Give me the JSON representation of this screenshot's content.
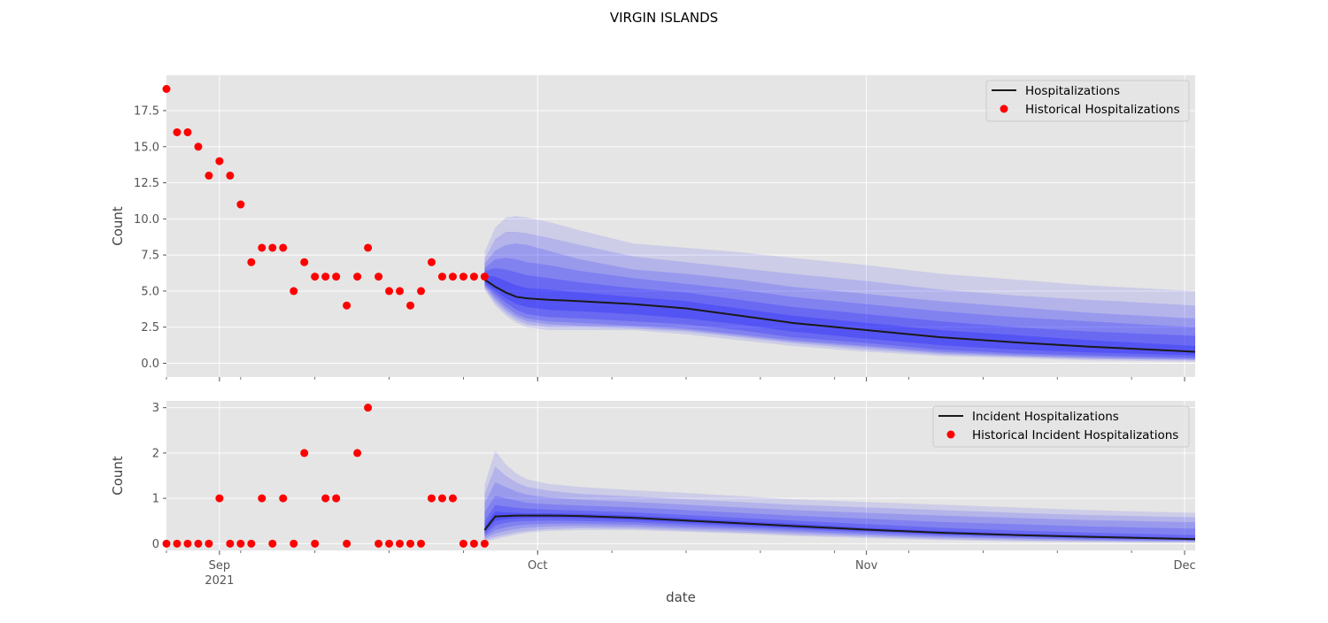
{
  "figure_title": "VIRGIN ISLANDS",
  "colors": {
    "panel_bg": "#e5e5e5",
    "grid": "#ffffff",
    "historical_points": "#ff0000",
    "median_line": "#1a1a1a",
    "fan_band": "#0000ff",
    "tick_text": "#555555"
  },
  "chart_data": [
    {
      "type": "line",
      "title": "",
      "xlabel": "",
      "ylabel": "Count",
      "grid": true,
      "legend_position": "top-right",
      "xlim": [
        "2021-08-27",
        "2021-12-02"
      ],
      "ylim": [
        -0.95,
        19.95
      ],
      "y_ticks": [
        0.0,
        2.5,
        5.0,
        7.5,
        10.0,
        12.5,
        15.0,
        17.5
      ],
      "y_tick_labels": [
        "0.0",
        "2.5",
        "5.0",
        "7.5",
        "10.0",
        "12.5",
        "15.0",
        "17.5"
      ],
      "series": [
        {
          "name": "Historical Hospitalizations",
          "kind": "scatter",
          "x": [
            "2021-08-27",
            "2021-08-28",
            "2021-08-29",
            "2021-08-30",
            "2021-08-31",
            "2021-09-01",
            "2021-09-02",
            "2021-09-03",
            "2021-09-04",
            "2021-09-05",
            "2021-09-06",
            "2021-09-07",
            "2021-09-08",
            "2021-09-09",
            "2021-09-10",
            "2021-09-11",
            "2021-09-12",
            "2021-09-13",
            "2021-09-14",
            "2021-09-15",
            "2021-09-16",
            "2021-09-17",
            "2021-09-18",
            "2021-09-19",
            "2021-09-20",
            "2021-09-21",
            "2021-09-22",
            "2021-09-23",
            "2021-09-24",
            "2021-09-25",
            "2021-09-26"
          ],
          "y": [
            19,
            16,
            16,
            15,
            13,
            14,
            13,
            11,
            7,
            8,
            8,
            8,
            5,
            7,
            6,
            6,
            6,
            4,
            6,
            8,
            6,
            5,
            5,
            4,
            5,
            7,
            6,
            6,
            6,
            6,
            6
          ]
        },
        {
          "name": "Hospitalizations",
          "kind": "line",
          "x": [
            "2021-09-26",
            "2021-09-27",
            "2021-09-28",
            "2021-09-29",
            "2021-09-30",
            "2021-10-02",
            "2021-10-05",
            "2021-10-10",
            "2021-10-15",
            "2021-10-20",
            "2021-10-25",
            "2021-11-01",
            "2021-11-08",
            "2021-11-15",
            "2021-11-22",
            "2021-12-02"
          ],
          "y": [
            5.8,
            5.3,
            4.9,
            4.6,
            4.5,
            4.4,
            4.3,
            4.1,
            3.8,
            3.3,
            2.8,
            2.3,
            1.8,
            1.45,
            1.15,
            0.8
          ]
        }
      ],
      "fan_bands": {
        "x": [
          "2021-09-26",
          "2021-09-27",
          "2021-09-28",
          "2021-09-29",
          "2021-09-30",
          "2021-10-02",
          "2021-10-05",
          "2021-10-10",
          "2021-10-15",
          "2021-10-20",
          "2021-10-25",
          "2021-11-01",
          "2021-11-08",
          "2021-11-15",
          "2021-11-22",
          "2021-12-02"
        ],
        "bands": [
          {
            "lower": [
              5.1,
              4.0,
              3.3,
              2.8,
              2.5,
              2.3,
              2.3,
              2.3,
              2.0,
              1.6,
              1.2,
              0.8,
              0.5,
              0.35,
              0.2,
              0.1
            ],
            "upper": [
              7.7,
              9.4,
              10.1,
              10.2,
              10.1,
              9.8,
              9.2,
              8.3,
              8.0,
              7.7,
              7.3,
              6.8,
              6.2,
              5.8,
              5.4,
              5.0
            ]
          },
          {
            "lower": [
              5.2,
              4.2,
              3.5,
              3.0,
              2.7,
              2.5,
              2.5,
              2.4,
              2.2,
              1.8,
              1.4,
              0.95,
              0.6,
              0.45,
              0.3,
              0.2
            ],
            "upper": [
              7.2,
              8.6,
              9.1,
              9.1,
              9.0,
              8.7,
              8.2,
              7.4,
              7.0,
              6.6,
              6.2,
              5.7,
              5.1,
              4.7,
              4.4,
              4.0
            ]
          },
          {
            "lower": [
              5.3,
              4.4,
              3.7,
              3.2,
              2.9,
              2.7,
              2.6,
              2.5,
              2.3,
              1.9,
              1.5,
              1.1,
              0.7,
              0.5,
              0.35,
              0.25
            ],
            "upper": [
              6.9,
              7.8,
              8.2,
              8.3,
              8.2,
              7.8,
              7.2,
              6.5,
              6.2,
              5.8,
              5.3,
              4.8,
              4.3,
              3.9,
              3.5,
              3.1
            ]
          },
          {
            "lower": [
              5.4,
              4.6,
              3.9,
              3.4,
              3.1,
              2.9,
              2.8,
              2.6,
              2.4,
              2.0,
              1.6,
              1.2,
              0.8,
              0.6,
              0.45,
              0.3
            ],
            "upper": [
              6.6,
              7.2,
              7.3,
              7.2,
              7.0,
              6.8,
              6.4,
              5.9,
              5.5,
              5.1,
              4.6,
              4.1,
              3.6,
              3.2,
              2.9,
              2.5
            ]
          },
          {
            "lower": [
              5.5,
              4.8,
              4.2,
              3.7,
              3.4,
              3.2,
              3.1,
              2.9,
              2.7,
              2.3,
              1.8,
              1.4,
              0.95,
              0.7,
              0.55,
              0.4
            ],
            "upper": [
              6.4,
              6.6,
              6.5,
              6.3,
              6.1,
              5.9,
              5.6,
              5.2,
              4.9,
              4.4,
              3.9,
              3.4,
              2.9,
              2.5,
              2.2,
              1.9
            ]
          },
          {
            "lower": [
              5.6,
              5.0,
              4.5,
              4.1,
              3.9,
              3.7,
              3.6,
              3.4,
              3.1,
              2.7,
              2.2,
              1.7,
              1.25,
              0.95,
              0.75,
              0.55
            ],
            "upper": [
              6.1,
              6.0,
              5.7,
              5.4,
              5.2,
              5.1,
              4.9,
              4.6,
              4.3,
              3.8,
              3.3,
              2.8,
              2.3,
              1.95,
              1.6,
              1.2
            ]
          }
        ]
      }
    },
    {
      "type": "line",
      "title": "",
      "xlabel": "date",
      "ylabel": "Count",
      "grid": true,
      "legend_position": "top-right",
      "xlim": [
        "2021-08-27",
        "2021-12-02"
      ],
      "ylim": [
        -0.15,
        3.15
      ],
      "y_ticks": [
        0,
        1,
        2,
        3
      ],
      "y_tick_labels": [
        "0",
        "1",
        "2",
        "3"
      ],
      "x_tick_dates": [
        "2021-09-01",
        "2021-10-01",
        "2021-11-01",
        "2021-12-01"
      ],
      "x_tick_labels": [
        "Sep",
        "Oct",
        "Nov",
        "Dec"
      ],
      "x_tick_sublabel": "2021",
      "series": [
        {
          "name": "Historical Incident Hospitalizations",
          "kind": "scatter",
          "x": [
            "2021-08-27",
            "2021-08-28",
            "2021-08-29",
            "2021-08-30",
            "2021-08-31",
            "2021-09-01",
            "2021-09-02",
            "2021-09-03",
            "2021-09-04",
            "2021-09-05",
            "2021-09-06",
            "2021-09-07",
            "2021-09-08",
            "2021-09-09",
            "2021-09-10",
            "2021-09-11",
            "2021-09-12",
            "2021-09-13",
            "2021-09-14",
            "2021-09-15",
            "2021-09-16",
            "2021-09-17",
            "2021-09-18",
            "2021-09-19",
            "2021-09-20",
            "2021-09-21",
            "2021-09-22",
            "2021-09-23",
            "2021-09-24",
            "2021-09-25",
            "2021-09-26"
          ],
          "y": [
            0,
            0,
            0,
            0,
            0,
            1,
            0,
            0,
            0,
            1,
            0,
            1,
            0,
            2,
            0,
            1,
            1,
            0,
            2,
            3,
            0,
            0,
            0,
            0,
            0,
            1,
            1,
            1,
            0,
            0,
            0
          ]
        },
        {
          "name": "Incident Hospitalizations",
          "kind": "line",
          "x": [
            "2021-09-26",
            "2021-09-27",
            "2021-09-28",
            "2021-09-29",
            "2021-09-30",
            "2021-10-02",
            "2021-10-05",
            "2021-10-10",
            "2021-10-15",
            "2021-10-20",
            "2021-10-25",
            "2021-11-01",
            "2021-11-08",
            "2021-11-15",
            "2021-11-22",
            "2021-12-02"
          ],
          "y": [
            0.3,
            0.6,
            0.61,
            0.62,
            0.62,
            0.62,
            0.61,
            0.57,
            0.51,
            0.45,
            0.39,
            0.31,
            0.24,
            0.19,
            0.15,
            0.1
          ]
        }
      ],
      "fan_bands": {
        "x": [
          "2021-09-26",
          "2021-09-27",
          "2021-09-28",
          "2021-09-29",
          "2021-09-30",
          "2021-10-02",
          "2021-10-05",
          "2021-10-10",
          "2021-10-15",
          "2021-10-20",
          "2021-10-25",
          "2021-11-01",
          "2021-11-08",
          "2021-11-15",
          "2021-11-22",
          "2021-12-02"
        ],
        "bands": [
          {
            "lower": [
              0.05,
              0.1,
              0.15,
              0.2,
              0.24,
              0.28,
              0.3,
              0.3,
              0.26,
              0.22,
              0.17,
              0.12,
              0.08,
              0.05,
              0.03,
              0.02
            ],
            "upper": [
              1.3,
              2.05,
              1.75,
              1.55,
              1.42,
              1.32,
              1.25,
              1.18,
              1.12,
              1.05,
              0.98,
              0.92,
              0.86,
              0.8,
              0.74,
              0.68
            ]
          },
          {
            "lower": [
              0.08,
              0.15,
              0.2,
              0.25,
              0.28,
              0.32,
              0.34,
              0.33,
              0.29,
              0.25,
              0.2,
              0.15,
              0.1,
              0.07,
              0.05,
              0.03
            ],
            "upper": [
              1.1,
              1.7,
              1.5,
              1.35,
              1.25,
              1.17,
              1.1,
              1.04,
              0.98,
              0.92,
              0.86,
              0.8,
              0.74,
              0.68,
              0.63,
              0.58
            ]
          },
          {
            "lower": [
              0.12,
              0.22,
              0.28,
              0.32,
              0.35,
              0.38,
              0.39,
              0.37,
              0.33,
              0.29,
              0.24,
              0.18,
              0.13,
              0.1,
              0.07,
              0.05
            ],
            "upper": [
              0.9,
              1.35,
              1.25,
              1.15,
              1.08,
              1.02,
              0.97,
              0.92,
              0.86,
              0.8,
              0.74,
              0.68,
              0.62,
              0.57,
              0.52,
              0.47
            ]
          },
          {
            "lower": [
              0.16,
              0.3,
              0.36,
              0.4,
              0.42,
              0.44,
              0.44,
              0.42,
              0.37,
              0.33,
              0.28,
              0.21,
              0.16,
              0.12,
              0.09,
              0.06
            ],
            "upper": [
              0.7,
              1.05,
              1.0,
              0.95,
              0.9,
              0.87,
              0.84,
              0.8,
              0.74,
              0.68,
              0.62,
              0.55,
              0.48,
              0.43,
              0.38,
              0.33
            ]
          },
          {
            "lower": [
              0.2,
              0.4,
              0.46,
              0.49,
              0.5,
              0.51,
              0.5,
              0.47,
              0.42,
              0.37,
              0.32,
              0.25,
              0.19,
              0.15,
              0.11,
              0.08
            ],
            "upper": [
              0.5,
              0.85,
              0.82,
              0.79,
              0.77,
              0.75,
              0.73,
              0.69,
              0.63,
              0.57,
              0.51,
              0.43,
              0.35,
              0.29,
              0.24,
              0.19
            ]
          },
          {
            "lower": [
              0.24,
              0.5,
              0.54,
              0.56,
              0.57,
              0.57,
              0.56,
              0.52,
              0.46,
              0.41,
              0.35,
              0.28,
              0.21,
              0.17,
              0.13,
              0.09
            ],
            "upper": [
              0.38,
              0.71,
              0.69,
              0.68,
              0.67,
              0.67,
              0.66,
              0.62,
              0.56,
              0.5,
              0.44,
              0.35,
              0.28,
              0.22,
              0.18,
              0.13
            ]
          }
        ]
      }
    }
  ]
}
